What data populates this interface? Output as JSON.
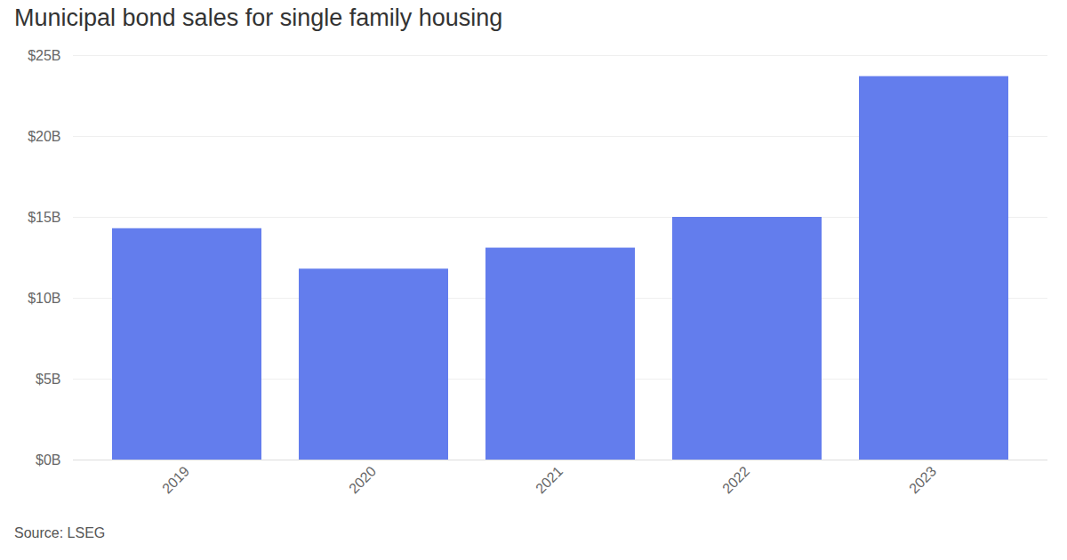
{
  "chart_data": {
    "type": "bar",
    "title": "Municipal bond sales for single family housing",
    "source": "Source: LSEG",
    "categories": [
      "2019",
      "2020",
      "2021",
      "2022",
      "2023"
    ],
    "values": [
      14.3,
      11.8,
      13.1,
      15.0,
      23.7
    ],
    "color": "#637ded",
    "ylim": [
      0,
      25
    ],
    "yticks": [
      {
        "value": 0,
        "label": "$0B"
      },
      {
        "value": 5,
        "label": "$5B"
      },
      {
        "value": 10,
        "label": "$10B"
      },
      {
        "value": 15,
        "label": "$15B"
      },
      {
        "value": 20,
        "label": "$20B"
      },
      {
        "value": 25,
        "label": "$25B"
      }
    ],
    "grid": true
  }
}
